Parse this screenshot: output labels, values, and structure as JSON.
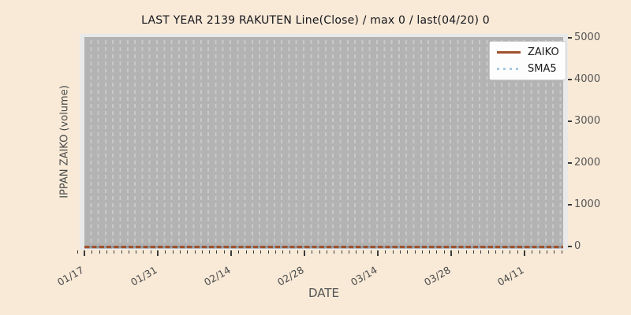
{
  "chart_data": {
    "type": "line",
    "title": "LAST YEAR 2139 RAKUTEN Line(Close) / max 0 / last(04/20) 0",
    "xlabel": "DATE",
    "ylabel": "IPPAN ZAIKO (volume)",
    "x_tick_labels": [
      "01/17",
      "01/31",
      "02/14",
      "02/28",
      "03/14",
      "03/28",
      "04/11"
    ],
    "x_range": [
      "01/17",
      "04/20"
    ],
    "y_ticks": [
      0,
      1000,
      2000,
      3000,
      4000,
      5000
    ],
    "ylim": [
      0,
      5000
    ],
    "grid": "vertical dashed line per trading day",
    "legend_position": "upper right",
    "series": [
      {
        "name": "ZAIKO",
        "line_style": "solid",
        "color": "#a0522d",
        "values_at_ticks": [
          0,
          0,
          0,
          0,
          0,
          0,
          0
        ],
        "max": 0,
        "last_date": "04/20",
        "last_value": 0
      },
      {
        "name": "SMA5",
        "line_style": "dotted",
        "color": "#a6c9e2",
        "values_at_ticks": [
          0,
          0,
          0,
          0,
          0,
          0,
          0
        ]
      }
    ]
  },
  "colors": {
    "figure_background": "#f8ead7",
    "axes_background": "#e9e9e9",
    "span_background": "#b3b3b3",
    "grid_line": "#c9c9c9",
    "zero_line_overlap": "#91a1ac",
    "title_text": "#15151c",
    "axis_label_text": "#4a4a4a",
    "tick_text": "#555555",
    "tick_mark": "#3a3a3a",
    "legend_text": "#1a1a1a"
  }
}
